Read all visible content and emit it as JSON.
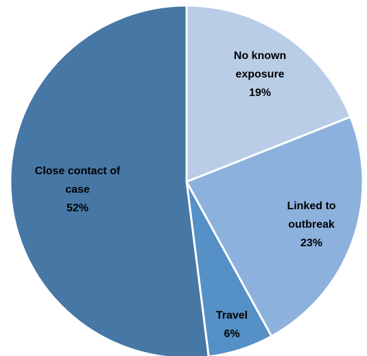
{
  "chart_data": {
    "type": "pie",
    "start_angle_deg": 0,
    "direction": "clockwise",
    "slices": [
      {
        "lines": [
          "No known",
          "exposure"
        ],
        "value_label": "19%",
        "value": 19,
        "color": "#b9cde7"
      },
      {
        "lines": [
          "Linked to",
          "outbreak"
        ],
        "value_label": "23%",
        "value": 23,
        "color": "#8cb1dc"
      },
      {
        "lines": [
          "Travel"
        ],
        "value_label": "6%",
        "value": 6,
        "color": "#5590c6"
      },
      {
        "lines": [
          "Close contact of",
          "case"
        ],
        "value_label": "52%",
        "value": 52,
        "color": "#4677a5"
      }
    ],
    "legend": "none",
    "title": ""
  }
}
